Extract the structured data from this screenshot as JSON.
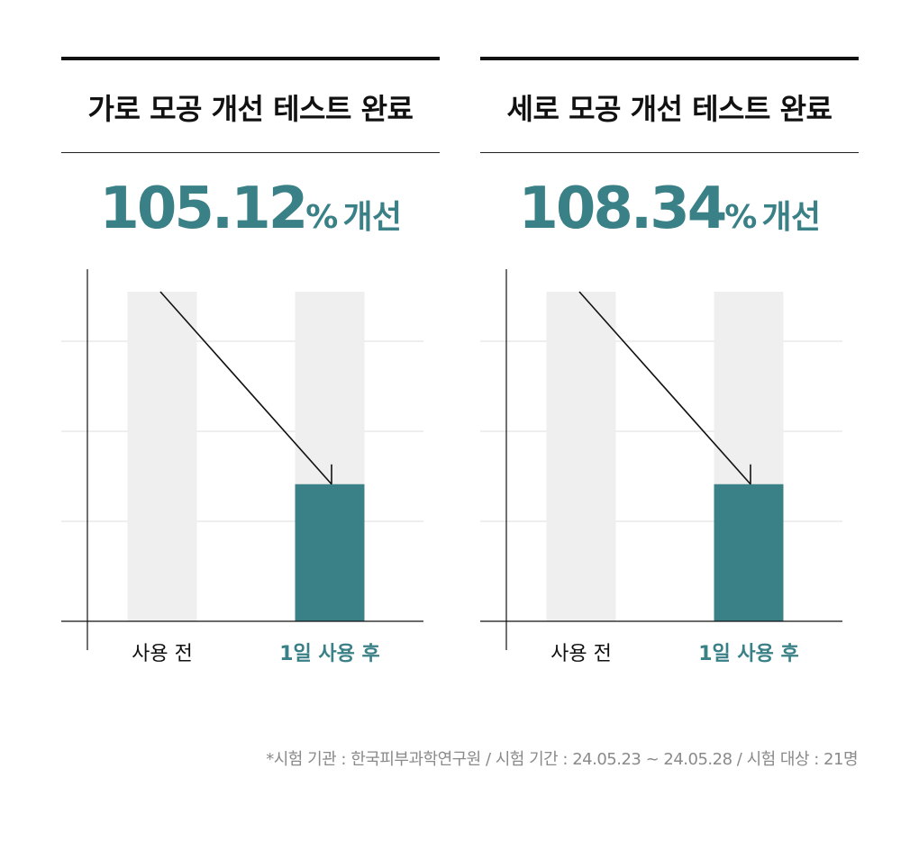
{
  "colors": {
    "accent": "#3a8087",
    "bar_background": "#efefef",
    "text": "#111111",
    "grid": "#dddddd",
    "footnote": "#8a8a8a"
  },
  "chart_data": [
    {
      "type": "bar",
      "title": "가로 모공 개선 테스트 완료",
      "headline_value": "105.12",
      "headline_unit": "%",
      "headline_suffix": "개선",
      "categories": [
        "사용 전",
        "1일 사용 후"
      ],
      "values": [
        100,
        41.6
      ],
      "highlight_index": 1,
      "ylim": [
        0,
        100
      ],
      "grid": true
    },
    {
      "type": "bar",
      "title": "세로 모공 개선 테스트 완료",
      "headline_value": "108.34",
      "headline_unit": "%",
      "headline_suffix": "개선",
      "categories": [
        "사용 전",
        "1일 사용 후"
      ],
      "values": [
        100,
        41.6
      ],
      "highlight_index": 1,
      "ylim": [
        0,
        100
      ],
      "grid": true
    }
  ],
  "footnote": "*시험 기관 : 한국피부과학연구원 / 시험 기간 : 24.05.23 ~ 24.05.28 / 시험 대상 : 21명"
}
